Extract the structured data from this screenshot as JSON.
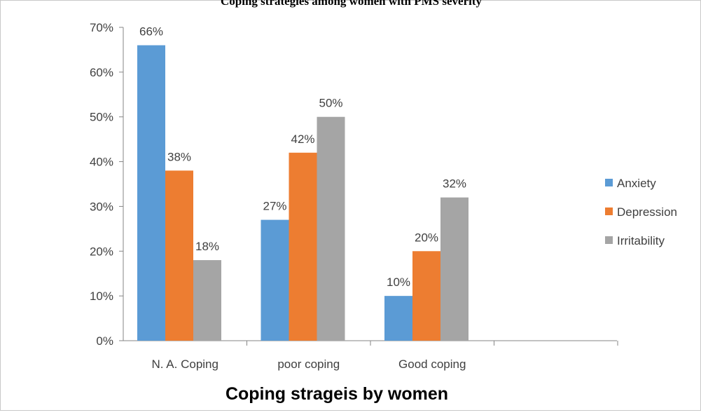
{
  "chart_data": {
    "type": "bar",
    "title": "Coping strategies among women with PMS severity",
    "xlabel": "Coping strageis by women",
    "ylabel": "",
    "ylim": [
      0,
      70
    ],
    "yticks": [
      "0%",
      "10%",
      "20%",
      "30%",
      "40%",
      "50%",
      "60%",
      "70%"
    ],
    "categories": [
      "N. A. Coping",
      "poor coping",
      "Good coping"
    ],
    "series": [
      {
        "name": "Anxiety",
        "values": [
          66,
          27,
          10
        ],
        "labels": [
          "66%",
          "27%",
          "10%"
        ],
        "color": "#5b9bd5"
      },
      {
        "name": "Depression",
        "values": [
          38,
          42,
          20
        ],
        "labels": [
          "38%",
          "42%",
          "20%"
        ],
        "color": "#ed7d31"
      },
      {
        "name": "Irritability",
        "values": [
          18,
          50,
          32
        ],
        "labels": [
          "18%",
          "50%",
          "32%"
        ],
        "color": "#a5a5a5"
      }
    ],
    "legend_position": "right",
    "grid": false
  }
}
